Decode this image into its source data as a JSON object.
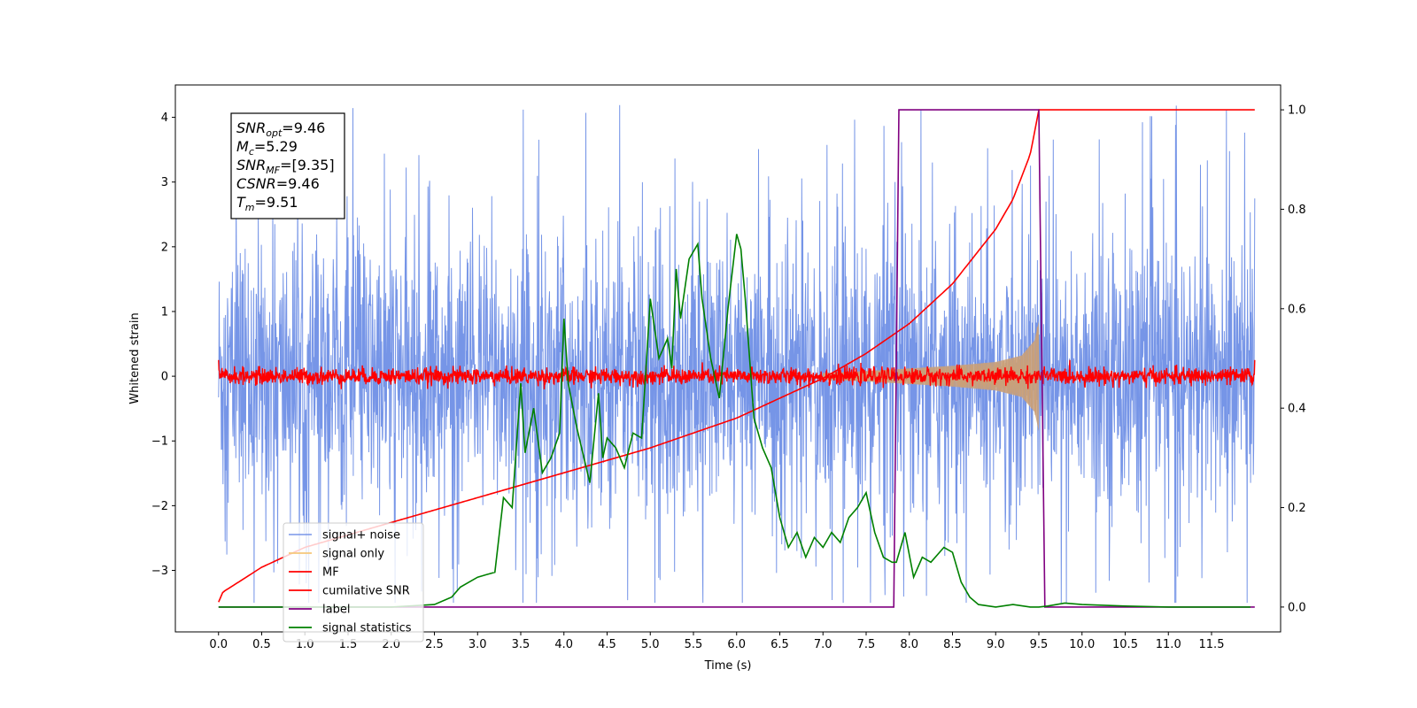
{
  "chart_data": {
    "type": "line",
    "title": "",
    "xlabel": "Time (s)",
    "ylabel": "Whitened strain",
    "y2label": "",
    "xlim": [
      -0.5,
      12.3
    ],
    "ylim": [
      -3.95,
      4.5
    ],
    "y2lim": [
      -0.05,
      1.05
    ],
    "xticks": [
      0.0,
      0.5,
      1.0,
      1.5,
      2.0,
      2.5,
      3.0,
      3.5,
      4.0,
      4.5,
      5.0,
      5.5,
      6.0,
      6.5,
      7.0,
      7.5,
      8.0,
      8.5,
      9.0,
      9.5,
      10.0,
      10.5,
      11.0,
      11.5
    ],
    "xtick_labels": [
      "0.0",
      "0.5",
      "1.0",
      "1.5",
      "2.0",
      "2.5",
      "3.0",
      "3.5",
      "4.0",
      "4.5",
      "5.0",
      "5.5",
      "6.0",
      "6.5",
      "7.0",
      "7.5",
      "8.0",
      "8.5",
      "9.0",
      "9.5",
      "10.0",
      "10.5",
      "11.0",
      "11.5"
    ],
    "yticks": [
      -3,
      -2,
      -1,
      0,
      1,
      2,
      3,
      4
    ],
    "ytick_labels": [
      "−3",
      "−2",
      "−1",
      "0",
      "1",
      "2",
      "3",
      "4"
    ],
    "y2ticks": [
      0.0,
      0.2,
      0.4,
      0.6,
      0.8,
      1.0
    ],
    "y2tick_labels": [
      "0.0",
      "0.2",
      "0.4",
      "0.6",
      "0.8",
      "1.0"
    ],
    "grid": false,
    "legend_position": "lower-left",
    "series": [
      {
        "name": "signal+ noise",
        "axis": "left",
        "color": "#6f8fe6",
        "kind": "noise",
        "x_range": [
          0.0,
          12.0
        ],
        "y_range": [
          -3.5,
          4.2
        ]
      },
      {
        "name": "signal only",
        "axis": "left",
        "color": "#f5c77a",
        "kind": "chirp",
        "x": [
          7.0,
          7.5,
          8.0,
          8.5,
          9.0,
          9.3,
          9.45,
          9.5
        ],
        "envelope": [
          0.05,
          0.08,
          0.12,
          0.16,
          0.22,
          0.32,
          0.55,
          0.85
        ]
      },
      {
        "name": "MF",
        "axis": "left",
        "color": "#ff0000",
        "kind": "noise",
        "x_range": [
          0.0,
          12.0
        ],
        "y_range": [
          -0.25,
          0.25
        ],
        "edges": [
          1.0,
          0.95
        ]
      },
      {
        "name": "cumilative SNR",
        "axis": "right",
        "color": "#ff0000",
        "x": [
          0.0,
          0.05,
          0.5,
          1.0,
          2.0,
          3.0,
          4.0,
          5.0,
          6.0,
          7.0,
          7.5,
          8.0,
          8.5,
          9.0,
          9.2,
          9.4,
          9.5,
          9.51,
          12.0
        ],
        "y": [
          0.01,
          0.03,
          0.08,
          0.12,
          0.17,
          0.22,
          0.27,
          0.32,
          0.38,
          0.46,
          0.51,
          0.57,
          0.65,
          0.76,
          0.82,
          0.91,
          1.0,
          1.0,
          1.0
        ]
      },
      {
        "name": "label",
        "axis": "right",
        "color": "#800080",
        "x": [
          0.0,
          7.82,
          7.88,
          9.5,
          9.57,
          12.0
        ],
        "y": [
          0.0,
          0.0,
          1.0,
          1.0,
          0.0,
          0.0
        ]
      },
      {
        "name": "signal statistics",
        "axis": "right",
        "color": "#008000",
        "x": [
          0.0,
          1.0,
          2.0,
          2.5,
          2.7,
          2.8,
          2.9,
          3.0,
          3.1,
          3.2,
          3.3,
          3.4,
          3.5,
          3.55,
          3.65,
          3.75,
          3.85,
          3.95,
          4.0,
          4.05,
          4.15,
          4.3,
          4.4,
          4.45,
          4.5,
          4.6,
          4.7,
          4.8,
          4.9,
          5.0,
          5.1,
          5.2,
          5.25,
          5.3,
          5.35,
          5.45,
          5.55,
          5.6,
          5.7,
          5.8,
          5.9,
          6.0,
          6.05,
          6.1,
          6.2,
          6.3,
          6.4,
          6.5,
          6.6,
          6.7,
          6.8,
          6.9,
          7.0,
          7.1,
          7.2,
          7.3,
          7.4,
          7.5,
          7.6,
          7.7,
          7.8,
          7.85,
          7.95,
          8.05,
          8.15,
          8.25,
          8.4,
          8.5,
          8.6,
          8.7,
          8.8,
          9.0,
          9.2,
          9.4,
          9.5,
          9.6,
          9.8,
          10.0,
          10.5,
          11.0,
          11.5,
          11.95
        ],
        "y": [
          0.0,
          0.0,
          0.0,
          0.005,
          0.02,
          0.04,
          0.05,
          0.06,
          0.065,
          0.07,
          0.22,
          0.2,
          0.45,
          0.31,
          0.4,
          0.27,
          0.3,
          0.35,
          0.58,
          0.45,
          0.36,
          0.25,
          0.43,
          0.3,
          0.34,
          0.32,
          0.28,
          0.35,
          0.34,
          0.62,
          0.5,
          0.54,
          0.48,
          0.68,
          0.58,
          0.7,
          0.73,
          0.62,
          0.5,
          0.42,
          0.6,
          0.75,
          0.72,
          0.62,
          0.38,
          0.32,
          0.28,
          0.18,
          0.12,
          0.15,
          0.1,
          0.14,
          0.12,
          0.15,
          0.13,
          0.18,
          0.2,
          0.23,
          0.15,
          0.1,
          0.09,
          0.09,
          0.15,
          0.06,
          0.1,
          0.09,
          0.12,
          0.11,
          0.05,
          0.02,
          0.005,
          0.0,
          0.005,
          0.0,
          0.0,
          0.002,
          0.008,
          0.005,
          0.002,
          0.0,
          0.0,
          0.0
        ]
      }
    ],
    "stats_box": [
      {
        "label": "SNR",
        "sub": "opt",
        "value": "=9.46"
      },
      {
        "label": "M",
        "sub": "c",
        "value": "=5.29"
      },
      {
        "label": "SNR",
        "sub": "MF",
        "value": "=[9.35]"
      },
      {
        "label": "CSNR",
        "sub": "",
        "value": "=9.46"
      },
      {
        "label": "T",
        "sub": "m",
        "value": "=9.51"
      }
    ]
  }
}
